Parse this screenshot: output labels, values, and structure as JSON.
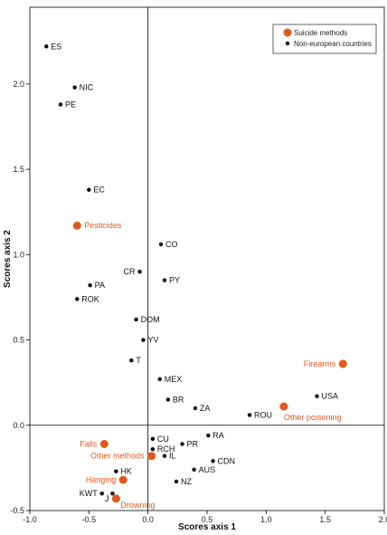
{
  "chart_data": {
    "type": "scatter",
    "xlabel": "Scores axis 1",
    "ylabel": "Scores axis 2",
    "xlim": [
      -1.0,
      2.0
    ],
    "ylim": [
      -0.5,
      2.45
    ],
    "x_ticks": [
      -1.0,
      -0.5,
      0.0,
      0.5,
      1.0,
      1.5,
      2.0
    ],
    "x_tick_labels": [
      "-1.0",
      "-0.5",
      "0.0",
      "0.5",
      "1.0",
      "1.5",
      "2.0"
    ],
    "y_ticks": [
      -0.5,
      0.0,
      0.5,
      1.0,
      1.5,
      2.0
    ],
    "y_tick_labels": [
      "-0.5",
      "0.0",
      "0.5",
      "1.0",
      "1.5",
      "2.0"
    ],
    "grid": false,
    "zero_lines": true,
    "legend_position": "top-right",
    "colors": {
      "methods": "#e0591f",
      "countries": "#000000"
    },
    "series": [
      {
        "name": "Suicide methods",
        "color": "#e0591f",
        "points": [
          {
            "label": "Pesticides",
            "x": -0.6,
            "y": 1.17,
            "anchor": "right"
          },
          {
            "label": "Firearms",
            "x": 1.65,
            "y": 0.36,
            "anchor": "left"
          },
          {
            "label": "Other poisoning",
            "x": 1.15,
            "y": 0.11,
            "anchor": "below"
          },
          {
            "label": "Falls",
            "x": -0.37,
            "y": -0.11,
            "anchor": "left"
          },
          {
            "label": "Other methods",
            "x": 0.03,
            "y": -0.18,
            "anchor": "left"
          },
          {
            "label": "Hanging",
            "x": -0.21,
            "y": -0.32,
            "anchor": "left"
          },
          {
            "label": "Drowning",
            "x": -0.27,
            "y": -0.43,
            "anchor": "right-below"
          }
        ]
      },
      {
        "name": "Non-european countries",
        "color": "#000000",
        "points": [
          {
            "label": "ES",
            "x": -0.86,
            "y": 2.22,
            "anchor": "right"
          },
          {
            "label": "NIC",
            "x": -0.62,
            "y": 1.98,
            "anchor": "right"
          },
          {
            "label": "PE",
            "x": -0.74,
            "y": 1.88,
            "anchor": "right"
          },
          {
            "label": "EC",
            "x": -0.5,
            "y": 1.38,
            "anchor": "right"
          },
          {
            "label": "CO",
            "x": 0.11,
            "y": 1.06,
            "anchor": "right"
          },
          {
            "label": "CR",
            "x": -0.07,
            "y": 0.9,
            "anchor": "left"
          },
          {
            "label": "PY",
            "x": 0.14,
            "y": 0.85,
            "anchor": "right"
          },
          {
            "label": "PA",
            "x": -0.49,
            "y": 0.82,
            "anchor": "right"
          },
          {
            "label": "ROK",
            "x": -0.6,
            "y": 0.74,
            "anchor": "right"
          },
          {
            "label": "DOM",
            "x": -0.1,
            "y": 0.62,
            "anchor": "right"
          },
          {
            "label": "YV",
            "x": -0.04,
            "y": 0.5,
            "anchor": "right"
          },
          {
            "label": "T",
            "x": -0.14,
            "y": 0.38,
            "anchor": "right"
          },
          {
            "label": "MEX",
            "x": 0.1,
            "y": 0.27,
            "anchor": "right"
          },
          {
            "label": "BR",
            "x": 0.17,
            "y": 0.15,
            "anchor": "right"
          },
          {
            "label": "ZA",
            "x": 0.4,
            "y": 0.1,
            "anchor": "right"
          },
          {
            "label": "ROU",
            "x": 0.86,
            "y": 0.06,
            "anchor": "right"
          },
          {
            "label": "USA",
            "x": 1.43,
            "y": 0.17,
            "anchor": "right"
          },
          {
            "label": "RA",
            "x": 0.51,
            "y": -0.06,
            "anchor": "right"
          },
          {
            "label": "CU",
            "x": 0.04,
            "y": -0.08,
            "anchor": "right"
          },
          {
            "label": "PR",
            "x": 0.29,
            "y": -0.11,
            "anchor": "right"
          },
          {
            "label": "RCH",
            "x": 0.04,
            "y": -0.14,
            "anchor": "right"
          },
          {
            "label": "IL",
            "x": 0.14,
            "y": -0.18,
            "anchor": "right"
          },
          {
            "label": "CDN",
            "x": 0.55,
            "y": -0.21,
            "anchor": "right"
          },
          {
            "label": "AUS",
            "x": 0.39,
            "y": -0.26,
            "anchor": "right"
          },
          {
            "label": "HK",
            "x": -0.27,
            "y": -0.27,
            "anchor": "right"
          },
          {
            "label": "NZ",
            "x": 0.24,
            "y": -0.33,
            "anchor": "right"
          },
          {
            "label": "KWT",
            "x": -0.39,
            "y": -0.4,
            "anchor": "left"
          },
          {
            "label": "J",
            "x": -0.3,
            "y": -0.4,
            "anchor": "left-below"
          }
        ]
      }
    ]
  }
}
